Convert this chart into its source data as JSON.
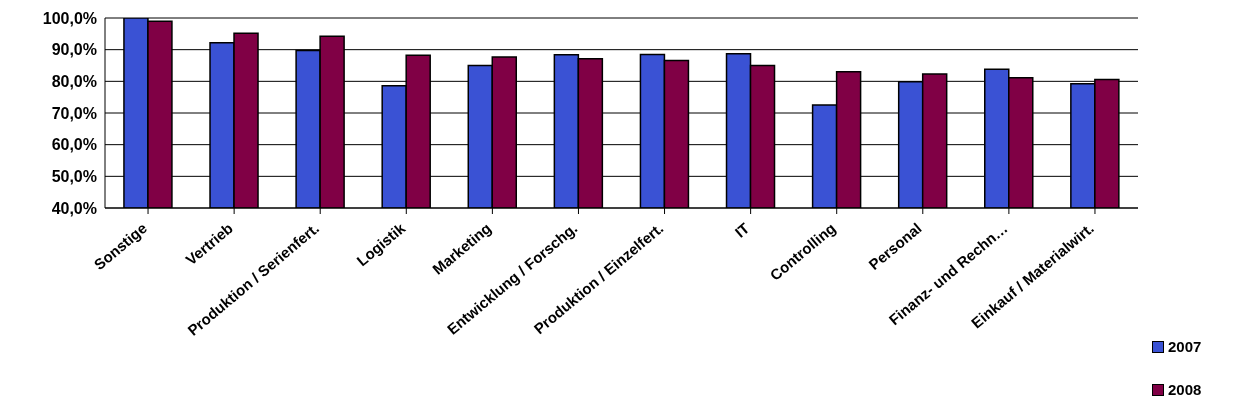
{
  "chart_data": {
    "type": "bar",
    "categories": [
      "Sonstige",
      "Vertrieb",
      "Produktion / Serienfert.",
      "Logistik",
      "Marketing",
      "Entwicklung / Forschg.",
      "Produktion / Einzelfert.",
      "IT",
      "Controlling",
      "Personal",
      "Finanz- und Rechn…",
      "Einkauf / Materialwirt."
    ],
    "series": [
      {
        "name": "2007",
        "color": "#3a52d4",
        "values": [
          100.0,
          92.2,
          89.7,
          78.6,
          85.0,
          88.4,
          88.5,
          88.7,
          72.5,
          79.9,
          83.8,
          79.2
        ]
      },
      {
        "name": "2008",
        "color": "#800045",
        "values": [
          99.0,
          95.2,
          94.2,
          88.2,
          87.7,
          87.1,
          86.6,
          85.0,
          83.0,
          82.3,
          81.1,
          80.6
        ]
      }
    ],
    "ylim": [
      40,
      100
    ],
    "yticks": [
      {
        "value": 40,
        "label": "40,0%"
      },
      {
        "value": 50,
        "label": "50,0%"
      },
      {
        "value": 60,
        "label": "60,0%"
      },
      {
        "value": 70,
        "label": "70,0%"
      },
      {
        "value": 80,
        "label": "80,0%"
      },
      {
        "value": 90,
        "label": "90,0%"
      },
      {
        "value": 100,
        "label": "100,0%"
      }
    ],
    "grid": "y",
    "legend": "bottom right"
  }
}
